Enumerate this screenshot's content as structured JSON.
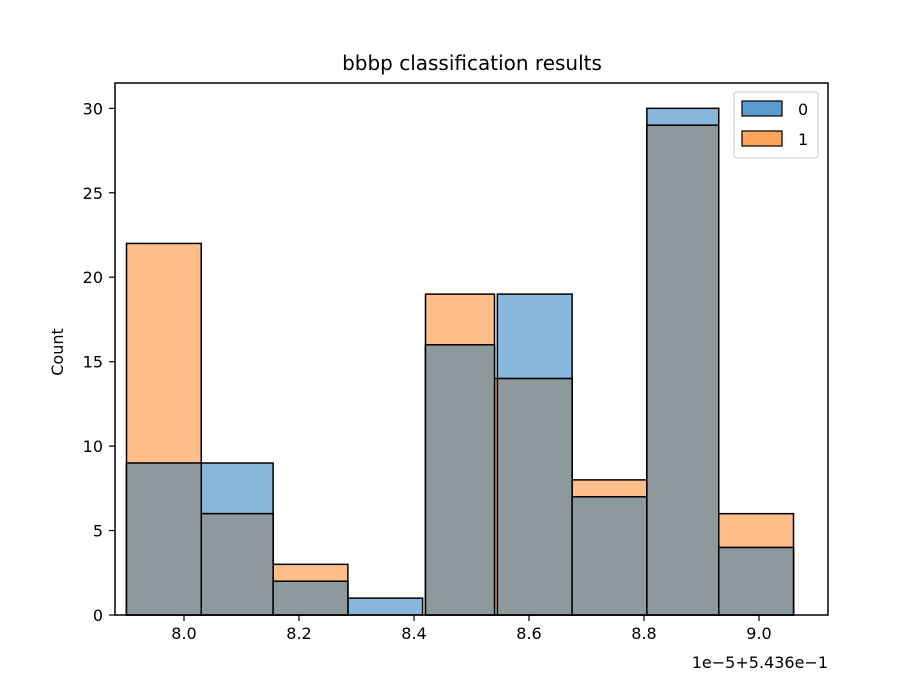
{
  "chart_data": {
    "type": "bar",
    "title": "bbbp classification results",
    "xlabel": "",
    "ylabel": "Count",
    "x_offset_label": "1e−5+5.436e−1",
    "xlim": [
      7.88,
      9.12
    ],
    "ylim": [
      0,
      31.5
    ],
    "xticks": [
      8.0,
      8.2,
      8.4,
      8.6,
      8.8,
      9.0
    ],
    "xtick_labels": [
      "8.0",
      "8.2",
      "8.4",
      "8.6",
      "8.8",
      "9.0"
    ],
    "yticks": [
      0,
      5,
      10,
      15,
      20,
      25,
      30
    ],
    "ytick_labels": [
      "0",
      "5",
      "10",
      "15",
      "20",
      "25",
      "30"
    ],
    "legend": {
      "placement": "top-right",
      "entries": [
        "0",
        "1"
      ]
    },
    "colors": {
      "series0": "#5a9bd0",
      "series1": "#ffa45c",
      "overlap": "#8e999e",
      "edge": "#000000"
    },
    "series": [
      {
        "name": "0",
        "bins": [
          {
            "x0": 7.9,
            "x1": 8.03,
            "count": 9
          },
          {
            "x0": 8.03,
            "x1": 8.155,
            "count": 9
          },
          {
            "x0": 8.155,
            "x1": 8.285,
            "count": 2
          },
          {
            "x0": 8.285,
            "x1": 8.415,
            "count": 1
          },
          {
            "x0": 8.42,
            "x1": 8.54,
            "count": 16
          },
          {
            "x0": 8.545,
            "x1": 8.675,
            "count": 19
          },
          {
            "x0": 8.675,
            "x1": 8.805,
            "count": 7
          },
          {
            "x0": 8.805,
            "x1": 8.93,
            "count": 30
          },
          {
            "x0": 8.93,
            "x1": 9.06,
            "count": 4
          }
        ]
      },
      {
        "name": "1",
        "bins": [
          {
            "x0": 7.9,
            "x1": 8.03,
            "count": 22
          },
          {
            "x0": 8.03,
            "x1": 8.155,
            "count": 6
          },
          {
            "x0": 8.155,
            "x1": 8.285,
            "count": 3
          },
          {
            "x0": 8.42,
            "x1": 8.54,
            "count": 19
          },
          {
            "x0": 8.54,
            "x1": 8.675,
            "count": 14
          },
          {
            "x0": 8.675,
            "x1": 8.805,
            "count": 8
          },
          {
            "x0": 8.805,
            "x1": 8.93,
            "count": 29
          },
          {
            "x0": 8.93,
            "x1": 9.06,
            "count": 6
          }
        ]
      }
    ]
  }
}
